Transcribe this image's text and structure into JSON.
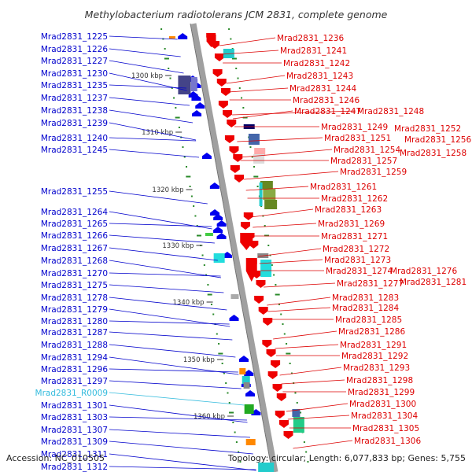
{
  "title": "Methylobacterium radiotolerans JCM 2831, complete genome",
  "footer": {
    "accession": "Accession: NC_010505",
    "summary": "Topology: circular; Length: 6,077,833 bp; Genes: 5,755"
  },
  "colors": {
    "left_label": "#0000cc",
    "rna_label": "#33bbdd",
    "right_label": "#dd0000",
    "backbone": "#a0a0a0",
    "tick": "#2a8a2a"
  },
  "kbp_marks": [
    "1300 kbp",
    "1310 kbp",
    "1320 kbp",
    "1330 kbp",
    "1340 kbp",
    "1350 kbp",
    "1360 kbp"
  ],
  "left_labels": [
    {
      "text": "Mrad2831_1225",
      "type": "gene"
    },
    {
      "text": "Mrad2831_1226",
      "type": "gene"
    },
    {
      "text": "Mrad2831_1227",
      "type": "gene"
    },
    {
      "text": "Mrad2831_1230",
      "type": "gene"
    },
    {
      "text": "Mrad2831_1235",
      "type": "gene"
    },
    {
      "text": "Mrad2831_1237",
      "type": "gene"
    },
    {
      "text": "Mrad2831_1238",
      "type": "gene"
    },
    {
      "text": "Mrad2831_1239",
      "type": "gene"
    },
    {
      "text": "Mrad2831_1240",
      "type": "gene"
    },
    {
      "text": "Mrad2831_1245",
      "type": "gene"
    },
    {
      "text": "Mrad2831_1255",
      "type": "gene"
    },
    {
      "text": "Mrad2831_1264",
      "type": "gene"
    },
    {
      "text": "Mrad2831_1265",
      "type": "gene"
    },
    {
      "text": "Mrad2831_1266",
      "type": "gene"
    },
    {
      "text": "Mrad2831_1267",
      "type": "gene"
    },
    {
      "text": "Mrad2831_1268",
      "type": "gene"
    },
    {
      "text": "Mrad2831_1270",
      "type": "gene"
    },
    {
      "text": "Mrad2831_1275",
      "type": "gene"
    },
    {
      "text": "Mrad2831_1278",
      "type": "gene"
    },
    {
      "text": "Mrad2831_1279",
      "type": "gene"
    },
    {
      "text": "Mrad2831_1280",
      "type": "gene"
    },
    {
      "text": "Mrad2831_1287",
      "type": "gene"
    },
    {
      "text": "Mrad2831_1288",
      "type": "gene"
    },
    {
      "text": "Mrad2831_1294",
      "type": "gene"
    },
    {
      "text": "Mrad2831_1296",
      "type": "gene"
    },
    {
      "text": "Mrad2831_1297",
      "type": "gene"
    },
    {
      "text": "Mrad2831_R0009",
      "type": "rna"
    },
    {
      "text": "Mrad2831_1301",
      "type": "gene"
    },
    {
      "text": "Mrad2831_1303",
      "type": "gene"
    },
    {
      "text": "Mrad2831_1307",
      "type": "gene"
    },
    {
      "text": "Mrad2831_1309",
      "type": "gene"
    },
    {
      "text": "Mrad2831_1311",
      "type": "gene"
    },
    {
      "text": "Mrad2831_1312",
      "type": "gene"
    }
  ],
  "right_labels": [
    "Mrad2831_1236",
    "Mrad2831_1241",
    "Mrad2831_1242",
    "Mrad2831_1243",
    "Mrad2831_1244",
    "Mrad2831_1246",
    "Mrad2831_1247",
    "Mrad2831_1248",
    "Mrad2831_1249",
    "Mrad2831_1252",
    "Mrad2831_1251",
    "Mrad2831_1256",
    "Mrad2831_1254",
    "Mrad2831_1258",
    "Mrad2831_1257",
    "Mrad2831_1259",
    "Mrad2831_1261",
    "Mrad2831_1262",
    "Mrad2831_1263",
    "Mrad2831_1269",
    "Mrad2831_1271",
    "Mrad2831_1272",
    "Mrad2831_1273",
    "Mrad2831_1274",
    "Mrad2831_1276",
    "Mrad2831_1277",
    "Mrad2831_1281",
    "Mrad2831_1283",
    "Mrad2831_1284",
    "Mrad2831_1285",
    "Mrad2831_1286",
    "Mrad2831_1291",
    "Mrad2831_1292",
    "Mrad2831_1293",
    "Mrad2831_1298",
    "Mrad2831_1299",
    "Mrad2831_1300",
    "Mrad2831_1304",
    "Mrad2831_1305",
    "Mrad2831_1306"
  ]
}
